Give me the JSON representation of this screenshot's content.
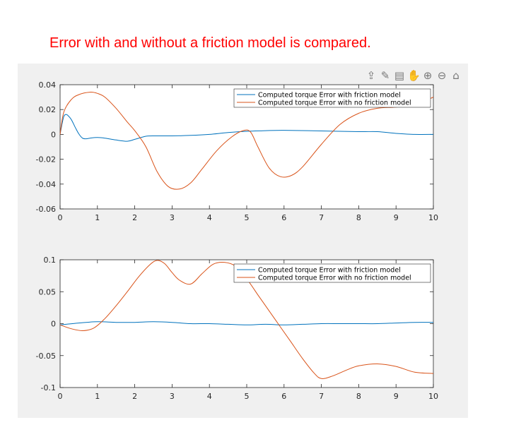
{
  "caption": "Error with and without a friction model is compared.",
  "toolbar": {
    "icons": [
      "export-icon",
      "brush-icon",
      "data-tips-icon",
      "pan-icon",
      "zoom-in-icon",
      "zoom-out-icon",
      "home-icon"
    ],
    "glyphs": [
      "⇪",
      "✎",
      "▤",
      "✋",
      "⊕",
      "⊖",
      "⌂"
    ]
  },
  "colors": {
    "series1": "#0072bd",
    "series2": "#d95319",
    "caption": "#ff0000",
    "figure_bg": "#f0f0f0"
  },
  "chart_data": [
    {
      "type": "line",
      "xlim": [
        0,
        10
      ],
      "ylim": [
        -0.06,
        0.04
      ],
      "xticks": [
        0,
        1,
        2,
        3,
        4,
        5,
        6,
        7,
        8,
        9,
        10
      ],
      "yticks": [
        -0.06,
        -0.04,
        -0.02,
        0,
        0.02,
        0.04
      ],
      "ytick_labels": [
        "-0.06",
        "-0.04",
        "-0.02",
        "0",
        "0.02",
        "0.04"
      ],
      "grid": false,
      "legend_position": "top-right",
      "series": [
        {
          "name": "Computed torque Error with friction model",
          "x": [
            0,
            0.05,
            0.1,
            0.15,
            0.2,
            0.3,
            0.4,
            0.5,
            0.6,
            0.7,
            0.8,
            1.0,
            1.2,
            1.5,
            1.8,
            2.0,
            2.3,
            2.6,
            3.0,
            3.5,
            4.0,
            4.5,
            5.0,
            5.5,
            6.0,
            7.0,
            8.0,
            8.5,
            9.0,
            9.5,
            10.0
          ],
          "y": [
            0.0,
            0.008,
            0.0145,
            0.016,
            0.0155,
            0.012,
            0.006,
            0.0005,
            -0.003,
            -0.0035,
            -0.003,
            -0.0025,
            -0.003,
            -0.0045,
            -0.0055,
            -0.004,
            -0.0015,
            -0.0012,
            -0.0012,
            -0.0008,
            0.0,
            0.0015,
            0.0025,
            0.003,
            0.0033,
            0.0028,
            0.0022,
            0.0022,
            0.0008,
            0.0,
            0.0
          ]
        },
        {
          "name": "Computed torque Error with no friction model",
          "x": [
            0,
            0.1,
            0.3,
            0.5,
            0.8,
            1.0,
            1.2,
            1.5,
            1.8,
            2.0,
            2.3,
            2.6,
            2.9,
            3.2,
            3.5,
            3.8,
            4.2,
            4.6,
            4.9,
            5.1,
            5.3,
            5.6,
            5.9,
            6.2,
            6.5,
            7.0,
            7.5,
            8.0,
            8.5,
            9.0,
            9.5,
            10.0
          ],
          "y": [
            0.0,
            0.018,
            0.028,
            0.032,
            0.034,
            0.033,
            0.03,
            0.021,
            0.01,
            0.003,
            -0.01,
            -0.03,
            -0.042,
            -0.044,
            -0.039,
            -0.028,
            -0.013,
            -0.002,
            0.003,
            0.002,
            -0.01,
            -0.027,
            -0.034,
            -0.033,
            -0.026,
            -0.008,
            0.008,
            0.017,
            0.021,
            0.022,
            0.024,
            0.03
          ]
        }
      ]
    },
    {
      "type": "line",
      "xlim": [
        0,
        10
      ],
      "ylim": [
        -0.1,
        0.1
      ],
      "xticks": [
        0,
        1,
        2,
        3,
        4,
        5,
        6,
        7,
        8,
        9,
        10
      ],
      "yticks": [
        -0.1,
        -0.05,
        0,
        0.05,
        0.1
      ],
      "ytick_labels": [
        "-0.1",
        "-0.05",
        "0",
        "0.05",
        "0.1"
      ],
      "grid": false,
      "legend_position": "top-right",
      "series": [
        {
          "name": "Computed torque Error with friction model",
          "x": [
            0,
            0.5,
            1.0,
            1.5,
            2.0,
            2.5,
            3.0,
            3.5,
            4.0,
            4.5,
            5.0,
            5.5,
            6.0,
            6.5,
            7.0,
            7.5,
            8.0,
            8.5,
            9.0,
            9.5,
            10.0
          ],
          "y": [
            -0.002,
            0.001,
            0.003,
            0.002,
            0.002,
            0.003,
            0.002,
            0.0,
            0.0,
            -0.001,
            -0.002,
            -0.001,
            -0.002,
            -0.001,
            0.0,
            0.0,
            0.0,
            0.0,
            0.001,
            0.002,
            0.002
          ]
        },
        {
          "name": "Computed torque Error with no friction model",
          "x": [
            0,
            0.3,
            0.6,
            0.9,
            1.2,
            1.5,
            1.8,
            2.1,
            2.4,
            2.6,
            2.8,
            3.0,
            3.2,
            3.5,
            3.8,
            4.1,
            4.4,
            4.7,
            5.0,
            5.3,
            5.6,
            5.9,
            6.2,
            6.5,
            6.8,
            7.0,
            7.3,
            7.7,
            8.0,
            8.5,
            9.0,
            9.5,
            10.0
          ],
          "y": [
            -0.002,
            -0.008,
            -0.011,
            -0.007,
            0.008,
            0.028,
            0.05,
            0.073,
            0.092,
            0.099,
            0.094,
            0.08,
            0.068,
            0.062,
            0.078,
            0.093,
            0.096,
            0.09,
            0.07,
            0.045,
            0.02,
            -0.005,
            -0.03,
            -0.055,
            -0.077,
            -0.086,
            -0.082,
            -0.072,
            -0.066,
            -0.063,
            -0.067,
            -0.076,
            -0.078
          ]
        }
      ]
    }
  ]
}
